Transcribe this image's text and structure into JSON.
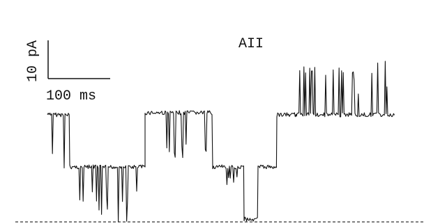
{
  "figure": {
    "title": "AII",
    "scale_bar": {
      "current": "10 pA",
      "time": "100 ms"
    }
  }
}
